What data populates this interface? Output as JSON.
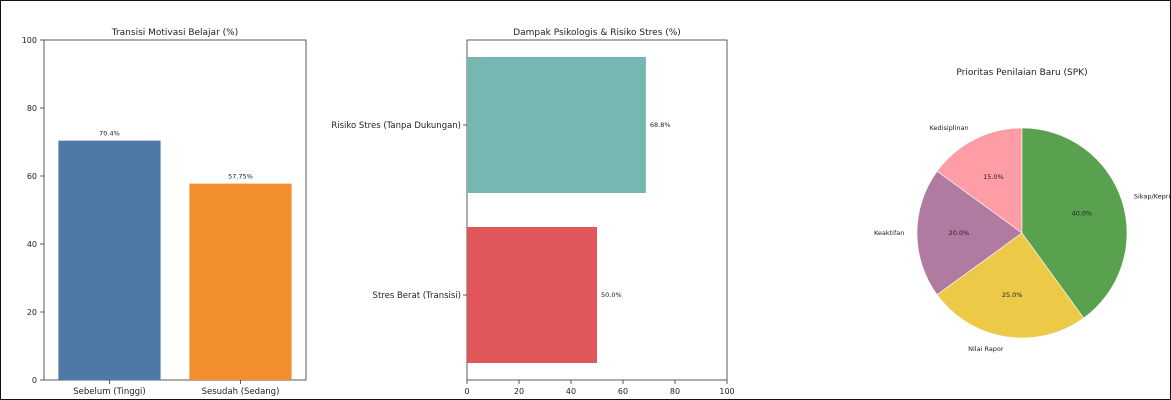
{
  "chart_data": [
    {
      "type": "bar",
      "title": "Transisi Motivasi Belajar (%)",
      "categories": [
        "Sebelum (Tinggi)",
        "Sesudah (Sedang)"
      ],
      "values": [
        70.4,
        57.75
      ],
      "value_labels": [
        "70.4%",
        "57.75%"
      ],
      "colors": [
        "#4e79a7",
        "#f28e2b"
      ],
      "ylim": [
        0,
        100
      ],
      "yticks": [
        0,
        20,
        40,
        60,
        80,
        100
      ]
    },
    {
      "type": "bar",
      "orientation": "horizontal",
      "title": "Dampak Psikologis & Risiko Stres (%)",
      "categories": [
        "Risiko Stres (Tanpa Dukungan)",
        "Stres Berat (Transisi)"
      ],
      "values": [
        68.8,
        50.0
      ],
      "value_labels": [
        "68.8%",
        "50.0%"
      ],
      "colors": [
        "#76b7b2",
        "#e15759"
      ],
      "xlim": [
        0,
        100
      ],
      "xticks": [
        0,
        20,
        40,
        60,
        80,
        100
      ]
    },
    {
      "type": "pie",
      "title": "Prioritas Penilaian Baru (SPK)",
      "labels": [
        "Kedisiplinan",
        "Keaktifan",
        "Nilai Rapor",
        "Sikap/Kepribadian"
      ],
      "values": [
        15.0,
        20.0,
        25.0,
        40.0
      ],
      "value_labels": [
        "15.0%",
        "20.0%",
        "25.0%",
        "40.0%"
      ],
      "colors": [
        "#ff9da7",
        "#b07aa1",
        "#edc948",
        "#59a14f"
      ]
    }
  ]
}
